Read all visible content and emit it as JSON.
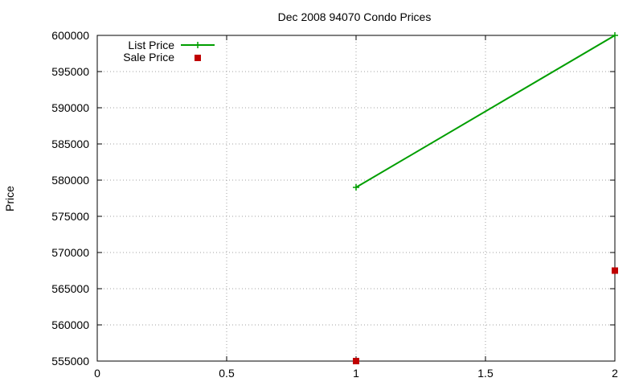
{
  "chart_data": {
    "type": "line",
    "title": "Dec 2008 94070 Condo Prices",
    "xlabel": "",
    "ylabel": "Price",
    "xlim": [
      0,
      2
    ],
    "ylim": [
      555000,
      600000
    ],
    "x_ticks": [
      "0",
      "0.5",
      "1",
      "1.5",
      "2"
    ],
    "y_ticks": [
      "555000",
      "560000",
      "565000",
      "570000",
      "575000",
      "580000",
      "585000",
      "590000",
      "595000",
      "600000"
    ],
    "grid": true,
    "legend_position": "top-left",
    "series": [
      {
        "name": "List Price",
        "style": "linespoints",
        "color": "#009e00",
        "points": [
          [
            1,
            579000
          ],
          [
            2,
            600000
          ]
        ]
      },
      {
        "name": "Sale Price",
        "style": "points",
        "color": "#c00000",
        "points": [
          [
            1,
            555000
          ],
          [
            2,
            567500
          ]
        ]
      }
    ]
  }
}
